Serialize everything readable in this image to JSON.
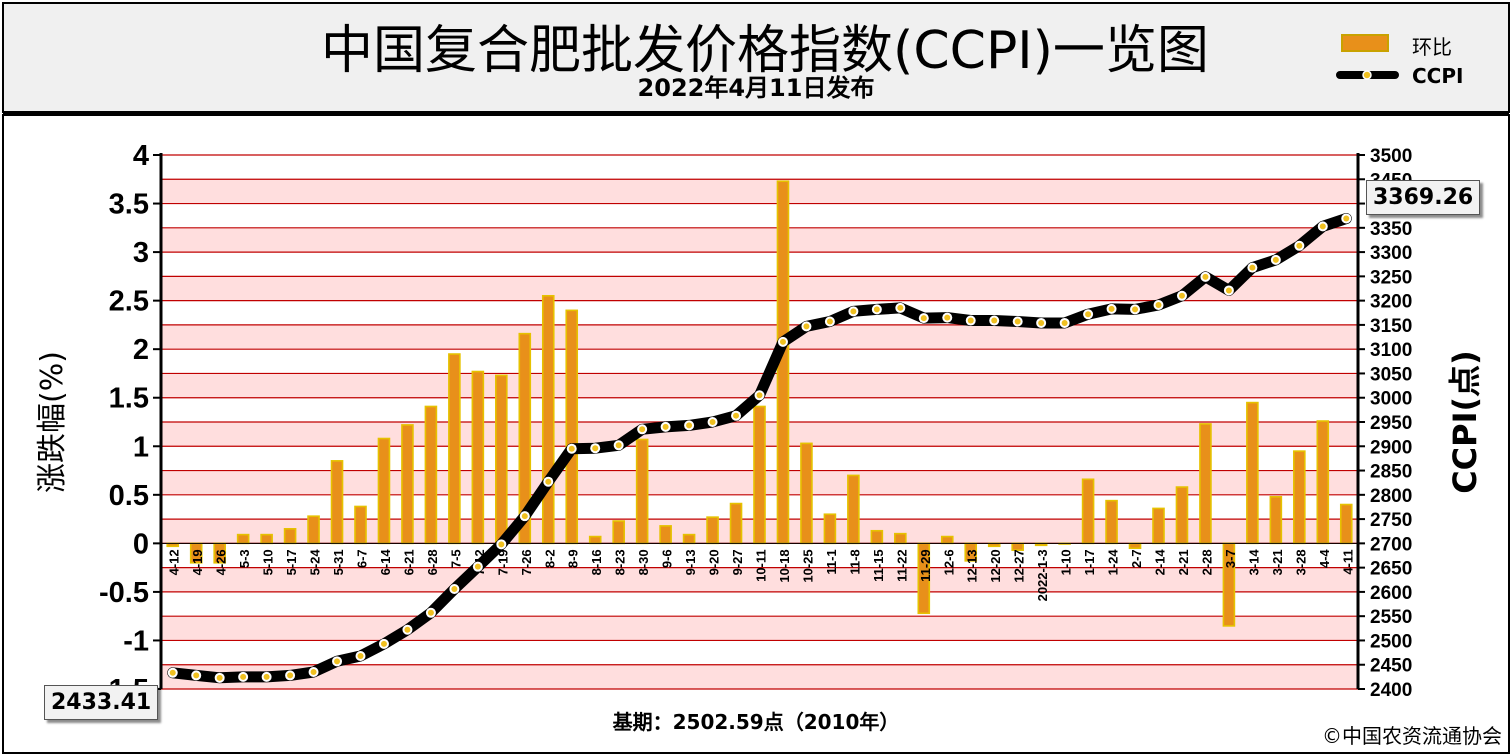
{
  "header": {
    "title": "中国复合肥批发价格指数(CCPI)一览图",
    "subtitle": "2022年4月11日发布"
  },
  "legend": {
    "bar_label": "环比",
    "line_label": "CCPI"
  },
  "footer": {
    "base_text": "基期：2502.59点（2010年）",
    "copyright": "©中国农资流通协会"
  },
  "callouts": {
    "start_value": "2433.41",
    "end_value": "3369.26"
  },
  "colors": {
    "bar": "#e8901a",
    "line": "#000000",
    "marker": "#f0c020",
    "grid": "#c00000",
    "band": "#ffdede"
  },
  "chart_data": {
    "type": "bar",
    "x": [
      "4-12",
      "4-19",
      "4-26",
      "5-3",
      "5-10",
      "5-17",
      "5-24",
      "5-31",
      "6-7",
      "6-14",
      "6-21",
      "6-28",
      "7-5",
      "7-12",
      "7-19",
      "7-26",
      "8-2",
      "8-9",
      "8-16",
      "8-23",
      "8-30",
      "9-6",
      "9-13",
      "9-20",
      "9-27",
      "10-11",
      "10-18",
      "10-25",
      "11-1",
      "11-8",
      "11-15",
      "11-22",
      "11-29",
      "12-6",
      "12-13",
      "12-20",
      "12-27",
      "2022-1-3",
      "1-10",
      "1-17",
      "1-24",
      "2-7",
      "2-14",
      "2-21",
      "2-28",
      "3-7",
      "3-14",
      "3-21",
      "3-28",
      "4-4",
      "4-11"
    ],
    "series": [
      {
        "name": "环比",
        "type": "bar",
        "axis": "left",
        "values": [
          -0.03,
          -0.2,
          -0.2,
          0.09,
          0.09,
          0.15,
          0.28,
          0.85,
          0.38,
          1.08,
          1.22,
          1.41,
          1.95,
          1.77,
          1.73,
          2.16,
          2.55,
          2.4,
          0.07,
          0.23,
          1.07,
          0.18,
          0.09,
          0.27,
          0.41,
          1.41,
          3.73,
          1.03,
          0.3,
          0.7,
          0.13,
          0.1,
          -0.72,
          0.07,
          -0.18,
          -0.03,
          -0.07,
          -0.02,
          0.0,
          0.66,
          0.44,
          -0.05,
          0.36,
          0.58,
          1.23,
          -0.85,
          1.45,
          0.48,
          0.95,
          1.26,
          0.4
        ]
      },
      {
        "name": "CCPI",
        "type": "line",
        "axis": "right",
        "values": [
          2433.41,
          2428,
          2423,
          2425,
          2425,
          2428,
          2435,
          2457,
          2468,
          2493,
          2522,
          2557,
          2606,
          2652,
          2698,
          2756,
          2827,
          2895,
          2896,
          2902,
          2935,
          2940,
          2943,
          2950,
          2963,
          3005,
          3115,
          3147,
          3157,
          3178,
          3182,
          3185,
          3164,
          3165,
          3159,
          3159,
          3157,
          3154,
          3154,
          3172,
          3183,
          3182,
          3191,
          3210,
          3249,
          3221,
          3268,
          3284,
          3313,
          3353,
          3369.26
        ]
      }
    ],
    "y_left": {
      "label": "涨跌幅(%)",
      "min": -1.5,
      "max": 4,
      "ticks": [
        "4",
        "3.5",
        "3",
        "2.5",
        "2",
        "1.5",
        "1",
        "0.5",
        "0",
        "-0.5",
        "-1",
        "-1.5"
      ]
    },
    "y_right": {
      "label": "CCPI(点)",
      "min": 2400,
      "max": 3500,
      "ticks": [
        "3500",
        "3450",
        "3400",
        "3350",
        "3300",
        "3250",
        "3200",
        "3150",
        "3100",
        "3050",
        "3000",
        "2950",
        "2900",
        "2850",
        "2800",
        "2750",
        "2700",
        "2650",
        "2600",
        "2550",
        "2500",
        "2450",
        "2400"
      ]
    },
    "grid": true,
    "legend_position": "top-right"
  }
}
